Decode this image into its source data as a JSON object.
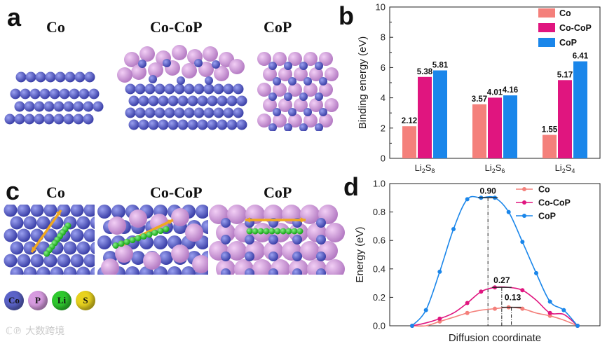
{
  "panels": {
    "a": {
      "letter": "a",
      "labels": [
        "Co",
        "Co-CoP",
        "CoP"
      ]
    },
    "c": {
      "letter": "c",
      "labels": [
        "Co",
        "Co-CoP",
        "CoP"
      ]
    }
  },
  "atom_legend": [
    {
      "symbol": "Co",
      "color": "#5b63c8"
    },
    {
      "symbol": "P",
      "color": "#d79be0"
    },
    {
      "symbol": "Li",
      "color": "#2fc92f"
    },
    {
      "symbol": "S",
      "color": "#e8d21f"
    }
  ],
  "watermark": "大数跨境",
  "colors": {
    "Co": "#f4807b",
    "Co-CoP": "#e0157f",
    "CoP": "#1a86ea",
    "atom_co": "#5b63c8",
    "atom_p": "#d79be0",
    "li": "#33cc33",
    "arrow": "#f0a820"
  },
  "chart_data": [
    {
      "panel": "b",
      "type": "bar",
      "categories": [
        "Li2S8",
        "Li2S6",
        "Li2S4"
      ],
      "category_labels": [
        {
          "base": "Li",
          "sub1": "2",
          "mid": "S",
          "sub2": "8"
        },
        {
          "base": "Li",
          "sub1": "2",
          "mid": "S",
          "sub2": "6"
        },
        {
          "base": "Li",
          "sub1": "2",
          "mid": "S",
          "sub2": "4"
        }
      ],
      "series": [
        {
          "name": "Co",
          "values": [
            2.12,
            3.57,
            1.55
          ],
          "labels": [
            "2.12",
            "3.57",
            "1.55"
          ]
        },
        {
          "name": "Co-CoP",
          "values": [
            5.38,
            4.01,
            5.17
          ],
          "labels": [
            "5.38",
            "4.01",
            "5.17"
          ]
        },
        {
          "name": "CoP",
          "values": [
            5.81,
            4.16,
            6.41
          ],
          "labels": [
            "5.81",
            "4.16",
            "6.41"
          ]
        }
      ],
      "ylabel": "Binding energy (eV)",
      "ylim": [
        0,
        10
      ],
      "yticks": [
        "0",
        "2",
        "4",
        "6",
        "8",
        "10"
      ],
      "legend": "top-right"
    },
    {
      "panel": "d",
      "type": "line",
      "xlabel": "Diffusion coordinate",
      "ylabel": "Energy (eV)",
      "ylim": [
        0,
        1.0
      ],
      "yticks": [
        "0.0",
        "0.2",
        "0.4",
        "0.6",
        "0.8",
        "1.0"
      ],
      "x": [
        0,
        1,
        2,
        3,
        4,
        5,
        6,
        7,
        8,
        9,
        10,
        11,
        12
      ],
      "series": [
        {
          "name": "Co",
          "values": [
            0.0,
            0.0,
            0.03,
            0.06,
            0.09,
            0.11,
            0.12,
            0.13,
            0.12,
            0.09,
            0.07,
            0.04,
            0.0
          ],
          "markers": [
            0,
            2,
            4,
            6,
            7,
            8,
            10,
            12
          ]
        },
        {
          "name": "Co-CoP",
          "values": [
            0.0,
            0.02,
            0.05,
            0.09,
            0.16,
            0.24,
            0.27,
            0.27,
            0.25,
            0.18,
            0.09,
            0.08,
            0.0
          ],
          "markers": [
            0,
            2,
            4,
            5,
            6,
            8,
            10,
            12
          ]
        },
        {
          "name": "CoP",
          "values": [
            0.0,
            0.11,
            0.38,
            0.68,
            0.89,
            0.9,
            0.9,
            0.8,
            0.59,
            0.37,
            0.17,
            0.11,
            0.0
          ],
          "markers": [
            0,
            1,
            2,
            3,
            4,
            5,
            6,
            7,
            8,
            9,
            10,
            11,
            12
          ]
        }
      ],
      "annotations": [
        {
          "text": "0.90",
          "series": "CoP",
          "x": 5.5,
          "y": 0.9
        },
        {
          "text": "0.27",
          "series": "Co-CoP",
          "x": 6.5,
          "y": 0.27
        },
        {
          "text": "0.13",
          "series": "Co",
          "x": 7.2,
          "y": 0.13
        }
      ],
      "legend": "top-right"
    }
  ]
}
